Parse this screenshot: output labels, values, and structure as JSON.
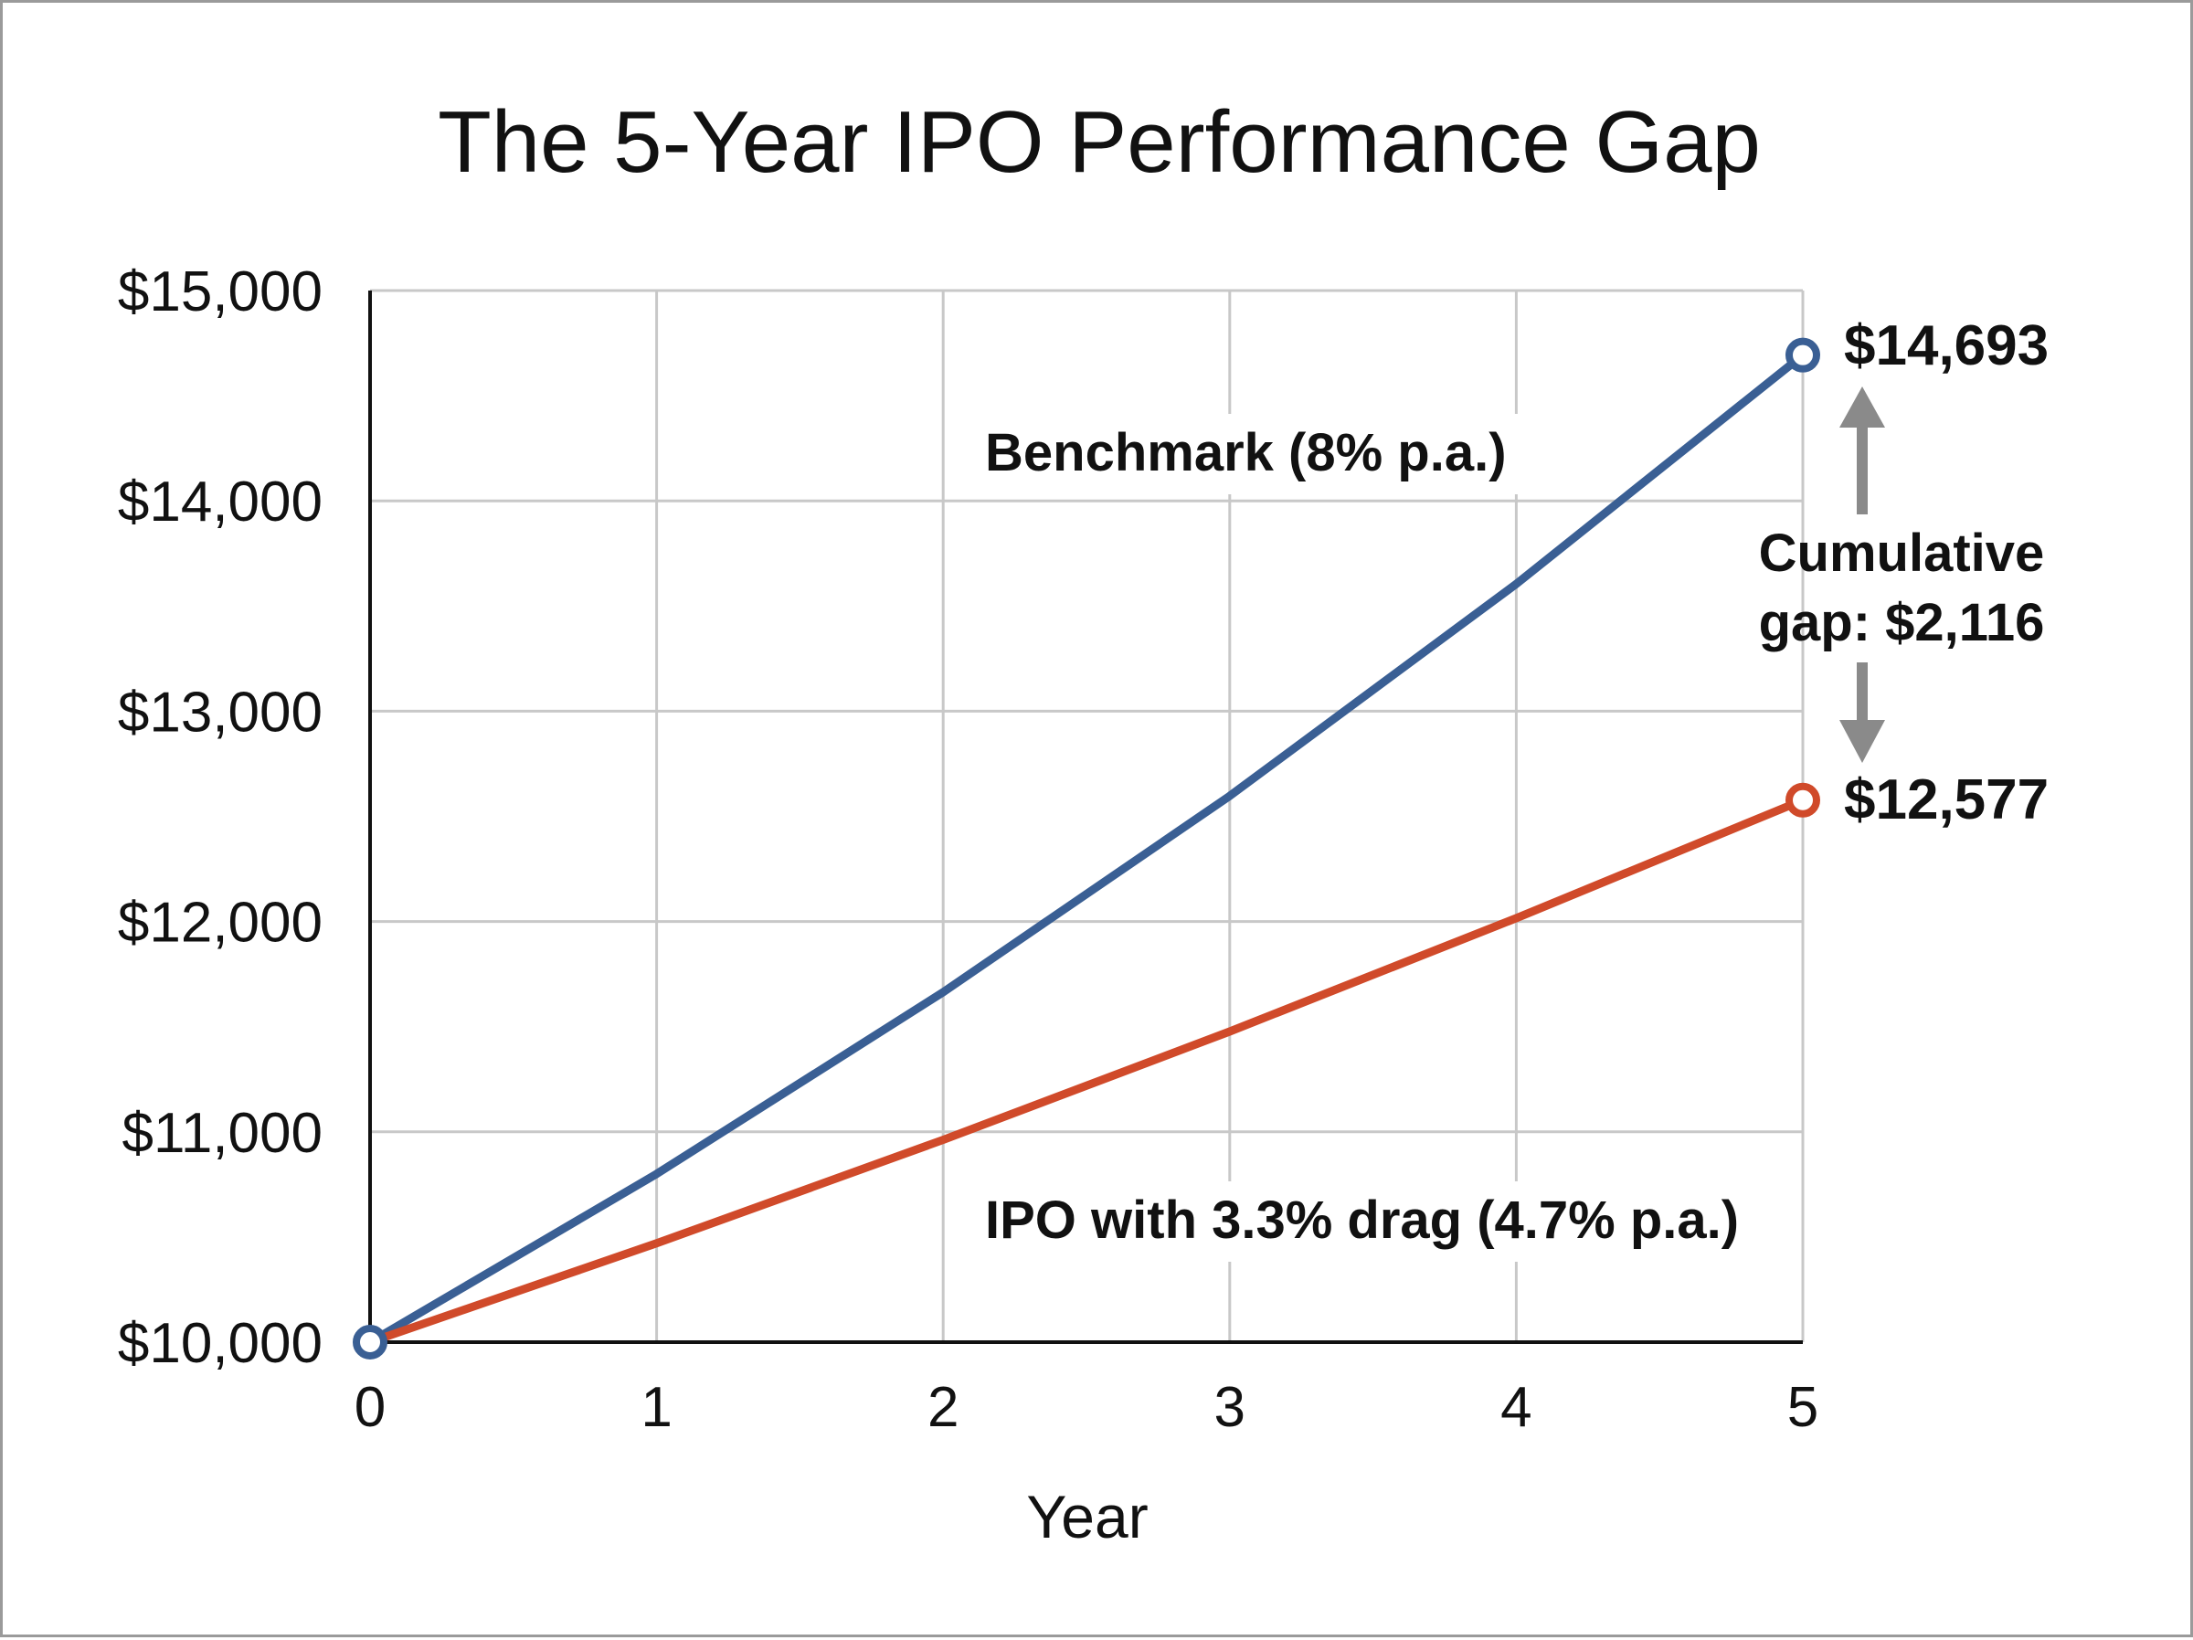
{
  "chart_data": {
    "type": "line",
    "title": "The 5-Year IPO Performance Gap",
    "xlabel": "Year",
    "ylabel": "",
    "x": [
      0,
      1,
      2,
      3,
      4,
      5
    ],
    "x_ticks": [
      "0",
      "1",
      "2",
      "3",
      "4",
      "5"
    ],
    "xlim": [
      0,
      5
    ],
    "ylim": [
      10000,
      15000
    ],
    "y_ticks": [
      10000,
      11000,
      12000,
      13000,
      14000,
      15000
    ],
    "y_tick_labels": [
      "$10,000",
      "$11,000",
      "$12,000",
      "$13,000",
      "$14,000",
      "$15,000"
    ],
    "grid": true,
    "series": [
      {
        "name": "Benchmark (8% p.a.)",
        "values": [
          10000,
          10800,
          11664,
          12597,
          13605,
          14693
        ],
        "color": "#3a5f94",
        "end_label": "$14,693"
      },
      {
        "name": "IPO with 3.3% drag (4.7% p.a.)",
        "values": [
          10000,
          10470,
          10962,
          11477,
          12016,
          12577
        ],
        "color": "#d04a2a",
        "end_label": "$12,577"
      }
    ],
    "annotations": {
      "gap_line1": "Cumulative",
      "gap_line2": "gap: $2,116",
      "arrow_color": "#8a8a8a"
    }
  }
}
